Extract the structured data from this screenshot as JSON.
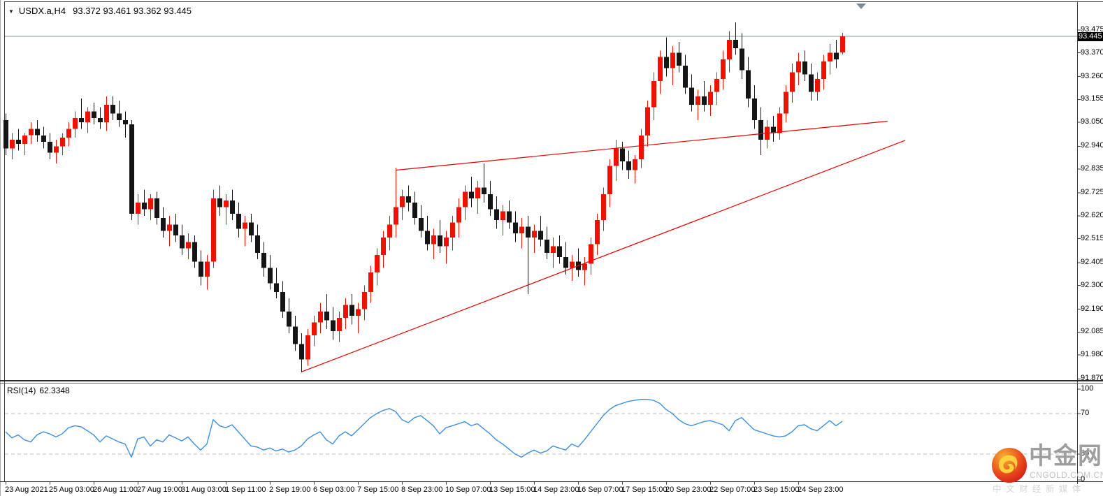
{
  "icons": {
    "symbol_dropdown": "▼"
  },
  "watermark": {
    "brand": "中金网",
    "domain": "CNGOLD.COM.CN",
    "tagline": "中 文 财 经 新 媒 体"
  },
  "chart_data": {
    "type": "candlestick",
    "title": "USDX.a,H4",
    "ohlc_readout": "93.372 93.461 93.362 93.445",
    "bid_price": 93.445,
    "price_axis": {
      "tick_labels": [
        "93.475",
        "93.370",
        "93.260",
        "93.155",
        "93.050",
        "92.940",
        "92.835",
        "92.725",
        "92.620",
        "92.515",
        "92.405",
        "92.300",
        "92.190",
        "92.085",
        "91.980",
        "91.870"
      ],
      "current_price": "93.445",
      "ylim": [
        91.855,
        93.603
      ]
    },
    "time_axis": {
      "tick_labels": [
        {
          "bar": 0,
          "label": "23 Aug 2021"
        },
        {
          "bar": 7,
          "label": "25 Aug 03:00"
        },
        {
          "bar": 14,
          "label": "26 Aug 11:00"
        },
        {
          "bar": 21,
          "label": "27 Aug 19:00"
        },
        {
          "bar": 28,
          "label": "31 Aug 03:00"
        },
        {
          "bar": 35,
          "label": "1 Sep 11:00"
        },
        {
          "bar": 42,
          "label": "2 Sep 19:00"
        },
        {
          "bar": 49,
          "label": "6 Sep 03:00"
        },
        {
          "bar": 56,
          "label": "7 Sep 15:00"
        },
        {
          "bar": 63,
          "label": "8 Sep 23:00"
        },
        {
          "bar": 70,
          "label": "10 Sep 07:00"
        },
        {
          "bar": 77,
          "label": "13 Sep 15:00"
        },
        {
          "bar": 84,
          "label": "14 Sep 23:00"
        },
        {
          "bar": 91,
          "label": "16 Sep 07:00"
        },
        {
          "bar": 98,
          "label": "17 Sep 15:00"
        },
        {
          "bar": 105,
          "label": "20 Sep 23:00"
        },
        {
          "bar": 112,
          "label": "22 Sep 07:00"
        },
        {
          "bar": 119,
          "label": "23 Sep 15:00"
        },
        {
          "bar": 126,
          "label": "24 Sep 23:00"
        }
      ]
    },
    "candles": [
      [
        93.06,
        93.09,
        92.9,
        92.93
      ],
      [
        92.93,
        93.0,
        92.88,
        92.97
      ],
      [
        92.97,
        93.02,
        92.92,
        92.95
      ],
      [
        92.95,
        93.0,
        92.9,
        92.99
      ],
      [
        92.99,
        93.05,
        92.95,
        93.02
      ],
      [
        93.02,
        93.06,
        92.96,
        92.99
      ],
      [
        92.99,
        93.03,
        92.93,
        92.96
      ],
      [
        92.96,
        93.0,
        92.88,
        92.91
      ],
      [
        92.91,
        92.97,
        92.86,
        92.94
      ],
      [
        92.94,
        93.0,
        92.9,
        92.98
      ],
      [
        92.98,
        93.05,
        92.94,
        93.02
      ],
      [
        93.02,
        93.1,
        92.98,
        93.07
      ],
      [
        93.07,
        93.16,
        93.02,
        93.05
      ],
      [
        93.05,
        93.12,
        93.0,
        93.1
      ],
      [
        93.1,
        93.14,
        93.04,
        93.07
      ],
      [
        93.07,
        93.12,
        93.02,
        93.05
      ],
      [
        93.05,
        93.17,
        93.01,
        93.13
      ],
      [
        93.13,
        93.17,
        93.06,
        93.09
      ],
      [
        93.09,
        93.15,
        93.03,
        93.06
      ],
      [
        93.06,
        93.1,
        92.98,
        93.04
      ],
      [
        93.04,
        93.06,
        92.6,
        92.63
      ],
      [
        92.63,
        92.72,
        92.58,
        92.68
      ],
      [
        92.68,
        92.74,
        92.62,
        92.65
      ],
      [
        92.65,
        92.72,
        92.6,
        92.7
      ],
      [
        92.7,
        92.73,
        92.58,
        92.61
      ],
      [
        92.61,
        92.66,
        92.52,
        92.55
      ],
      [
        92.55,
        92.62,
        92.48,
        92.58
      ],
      [
        92.58,
        92.63,
        92.5,
        92.53
      ],
      [
        92.53,
        92.58,
        92.44,
        92.47
      ],
      [
        92.47,
        92.54,
        92.42,
        92.5
      ],
      [
        92.5,
        92.53,
        92.38,
        92.41
      ],
      [
        92.41,
        92.46,
        92.3,
        92.34
      ],
      [
        92.34,
        92.44,
        92.28,
        92.41
      ],
      [
        92.41,
        92.74,
        92.38,
        92.7
      ],
      [
        92.7,
        92.76,
        92.62,
        92.66
      ],
      [
        92.66,
        92.72,
        92.58,
        92.69
      ],
      [
        92.69,
        92.74,
        92.6,
        92.63
      ],
      [
        92.63,
        92.68,
        92.52,
        92.56
      ],
      [
        92.56,
        92.62,
        92.48,
        92.59
      ],
      [
        92.59,
        92.63,
        92.5,
        92.53
      ],
      [
        92.53,
        92.58,
        92.42,
        92.45
      ],
      [
        92.45,
        92.5,
        92.34,
        92.38
      ],
      [
        92.38,
        92.44,
        92.28,
        92.31
      ],
      [
        92.31,
        92.38,
        92.24,
        92.27
      ],
      [
        92.27,
        92.32,
        92.15,
        92.18
      ],
      [
        92.18,
        92.24,
        92.08,
        92.11
      ],
      [
        92.11,
        92.16,
        92.0,
        92.03
      ],
      [
        92.03,
        92.08,
        91.9,
        91.96
      ],
      [
        91.96,
        92.1,
        91.93,
        92.07
      ],
      [
        92.07,
        92.16,
        92.02,
        92.13
      ],
      [
        92.13,
        92.22,
        92.08,
        92.18
      ],
      [
        92.18,
        92.26,
        92.1,
        92.14
      ],
      [
        92.14,
        92.2,
        92.05,
        92.09
      ],
      [
        92.09,
        92.18,
        92.04,
        92.15
      ],
      [
        92.15,
        92.24,
        92.1,
        92.21
      ],
      [
        92.21,
        92.26,
        92.12,
        92.16
      ],
      [
        92.16,
        92.22,
        92.08,
        92.19
      ],
      [
        92.19,
        92.3,
        92.14,
        92.27
      ],
      [
        92.27,
        92.39,
        92.22,
        92.36
      ],
      [
        92.36,
        92.47,
        92.3,
        92.44
      ],
      [
        92.44,
        92.55,
        92.38,
        92.52
      ],
      [
        92.52,
        92.62,
        92.46,
        92.58
      ],
      [
        92.58,
        92.84,
        92.52,
        92.66
      ],
      [
        92.66,
        92.74,
        92.6,
        92.71
      ],
      [
        92.71,
        92.76,
        92.64,
        92.68
      ],
      [
        92.68,
        92.73,
        92.58,
        92.61
      ],
      [
        92.61,
        92.67,
        92.52,
        92.55
      ],
      [
        92.55,
        92.62,
        92.46,
        92.49
      ],
      [
        92.49,
        92.56,
        92.42,
        92.53
      ],
      [
        92.53,
        92.6,
        92.45,
        92.48
      ],
      [
        92.48,
        92.55,
        92.4,
        92.52
      ],
      [
        92.52,
        92.62,
        92.46,
        92.59
      ],
      [
        92.59,
        92.7,
        92.52,
        92.66
      ],
      [
        92.66,
        92.76,
        92.6,
        92.73
      ],
      [
        92.73,
        92.8,
        92.66,
        92.7
      ],
      [
        92.7,
        92.78,
        92.63,
        92.75
      ],
      [
        92.75,
        92.86,
        92.68,
        92.72
      ],
      [
        92.72,
        92.78,
        92.62,
        92.65
      ],
      [
        92.65,
        92.71,
        92.56,
        92.6
      ],
      [
        92.6,
        92.67,
        92.53,
        92.64
      ],
      [
        92.64,
        92.69,
        92.56,
        92.59
      ],
      [
        92.59,
        92.64,
        92.5,
        92.54
      ],
      [
        92.54,
        92.61,
        92.47,
        92.57
      ],
      [
        92.57,
        92.62,
        92.26,
        92.52
      ],
      [
        92.52,
        92.58,
        92.45,
        92.55
      ],
      [
        92.55,
        92.62,
        92.48,
        92.51
      ],
      [
        92.51,
        92.57,
        92.42,
        92.45
      ],
      [
        92.45,
        92.52,
        92.38,
        92.48
      ],
      [
        92.48,
        92.53,
        92.4,
        92.43
      ],
      [
        92.43,
        92.5,
        92.35,
        92.38
      ],
      [
        92.38,
        92.44,
        92.32,
        92.41
      ],
      [
        92.41,
        92.47,
        92.34,
        92.37
      ],
      [
        92.37,
        92.43,
        92.3,
        92.4
      ],
      [
        92.4,
        92.52,
        92.35,
        92.49
      ],
      [
        92.49,
        92.63,
        92.44,
        92.6
      ],
      [
        92.6,
        92.75,
        92.55,
        92.72
      ],
      [
        92.72,
        92.88,
        92.66,
        92.85
      ],
      [
        92.85,
        92.97,
        92.78,
        92.93
      ],
      [
        92.93,
        92.96,
        92.83,
        92.87
      ],
      [
        92.87,
        92.92,
        92.79,
        92.83
      ],
      [
        92.83,
        92.9,
        92.77,
        92.88
      ],
      [
        92.88,
        93.02,
        92.84,
        92.99
      ],
      [
        92.99,
        93.15,
        92.94,
        93.12
      ],
      [
        93.12,
        93.28,
        93.06,
        93.24
      ],
      [
        93.24,
        93.38,
        93.18,
        93.35
      ],
      [
        93.35,
        93.44,
        93.26,
        93.3
      ],
      [
        93.3,
        93.4,
        93.22,
        93.37
      ],
      [
        93.37,
        93.42,
        93.28,
        93.31
      ],
      [
        93.31,
        93.36,
        93.18,
        93.21
      ],
      [
        93.21,
        93.27,
        93.1,
        93.13
      ],
      [
        93.13,
        93.2,
        93.06,
        93.17
      ],
      [
        93.17,
        93.24,
        93.1,
        93.13
      ],
      [
        93.13,
        93.22,
        93.08,
        93.19
      ],
      [
        93.19,
        93.28,
        93.13,
        93.25
      ],
      [
        93.25,
        93.38,
        93.2,
        93.34
      ],
      [
        93.34,
        93.47,
        93.28,
        93.43
      ],
      [
        93.43,
        93.51,
        93.36,
        93.39
      ],
      [
        93.39,
        93.46,
        93.25,
        93.29
      ],
      [
        93.29,
        93.35,
        93.12,
        93.16
      ],
      [
        93.16,
        93.22,
        93.02,
        93.06
      ],
      [
        93.06,
        93.12,
        92.9,
        92.97
      ],
      [
        92.97,
        93.06,
        92.93,
        93.03
      ],
      [
        93.03,
        93.08,
        92.96,
        93.0
      ],
      [
        93.0,
        93.12,
        92.97,
        93.09
      ],
      [
        93.09,
        93.22,
        93.05,
        93.19
      ],
      [
        93.19,
        93.32,
        93.14,
        93.28
      ],
      [
        93.28,
        93.37,
        93.22,
        93.33
      ],
      [
        93.33,
        93.38,
        93.24,
        93.27
      ],
      [
        93.27,
        93.32,
        93.15,
        93.19
      ],
      [
        93.19,
        93.28,
        93.15,
        93.25
      ],
      [
        93.25,
        93.36,
        93.2,
        93.33
      ],
      [
        93.33,
        93.41,
        93.27,
        93.37
      ],
      [
        93.37,
        93.43,
        93.3,
        93.34
      ],
      [
        93.372,
        93.461,
        93.362,
        93.445
      ]
    ],
    "trendlines": [
      {
        "from_bar": 62,
        "from_price": 92.83,
        "to_bar": 140.2,
        "to_price": 93.055
      },
      {
        "from_bar": 47.1,
        "from_price": 91.903,
        "to_bar": 143,
        "to_price": 92.967
      }
    ],
    "rsi": {
      "name": "RSI(14)",
      "value": "62.3348",
      "tick_labels": [
        100,
        70,
        30,
        0
      ],
      "dashed_levels": [
        70,
        30
      ],
      "values": [
        52,
        46,
        49,
        44,
        42,
        49,
        52,
        50,
        47,
        50,
        56,
        58,
        57,
        53,
        49,
        42,
        48,
        45,
        42,
        40,
        27,
        45,
        47,
        38,
        44,
        42,
        49,
        46,
        43,
        47,
        40,
        34,
        40,
        64,
        58,
        56,
        59,
        52,
        45,
        38,
        37,
        34,
        36,
        33,
        35,
        32,
        34,
        38,
        45,
        49,
        52,
        44,
        40,
        48,
        52,
        48,
        54,
        60,
        66,
        70,
        73,
        75,
        72,
        64,
        61,
        66,
        68,
        63,
        58,
        50,
        56,
        58,
        60,
        62,
        58,
        60,
        55,
        50,
        44,
        40,
        35,
        30,
        27,
        31,
        34,
        31,
        33,
        38,
        36,
        34,
        40,
        37,
        44,
        52,
        60,
        68,
        74,
        78,
        80,
        82,
        83,
        84,
        84,
        83,
        80,
        74,
        70,
        64,
        60,
        58,
        60,
        62,
        63,
        61,
        59,
        53,
        63,
        66,
        60,
        54,
        52,
        50,
        48,
        47,
        48,
        52,
        58,
        59,
        55,
        53,
        58,
        63,
        58,
        62.33
      ]
    },
    "colors": {
      "up": "#ee1100",
      "down": "#151515",
      "rsi_line": "#3e8ede",
      "trendline": "#e60000",
      "bid_line": "#8a95a0",
      "level_dash": "#bcbcbc",
      "frame": "#3c3c3c"
    }
  }
}
